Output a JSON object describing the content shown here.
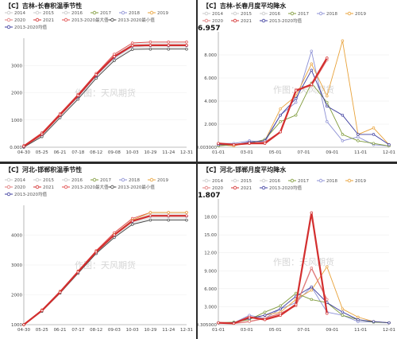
{
  "colors": {
    "y2014": "#c8c8c8",
    "y2015": "#c8c8c8",
    "y2016": "#c8c8c8",
    "y2017": "#7f9a3a",
    "y2018": "#8b8fd4",
    "y2019": "#e8a23a",
    "y2020": "#e07a7a",
    "y2021": "#d32f2f",
    "max": "#e04a4a",
    "min": "#444444",
    "avg": "#3c3c9e",
    "band": "#dcdcdc"
  },
  "chart_data": [
    {
      "type": "line",
      "title": "【C】吉林-长春积温季节性",
      "legend": [
        "2014",
        "2015",
        "2016",
        "2017",
        "2018",
        "2019",
        "2020",
        "2021",
        "2013-2020最大值",
        "2013-2020最小值",
        "2013-2020均值"
      ],
      "x_ticks": [
        "04-30",
        "05-25",
        "06-21",
        "07-18",
        "08-12",
        "09-08",
        "10-03",
        "10-29",
        "11-24",
        "12-31"
      ],
      "y_ticks": [
        "0.000",
        "1000",
        "2000",
        "3000"
      ],
      "ylim": [
        0,
        3400
      ],
      "watermark": "作图：天风期货",
      "series": [
        {
          "name": "2013-2020最大值",
          "key": "max",
          "values": [
            50,
            450,
            1050,
            1650,
            2300,
            2900,
            3250,
            3280,
            3280,
            3280
          ]
        },
        {
          "name": "2013-2020最小值",
          "key": "min",
          "values": [
            0,
            330,
            920,
            1500,
            2150,
            2700,
            3050,
            3060,
            3060,
            3060
          ]
        },
        {
          "name": "2013-2020均值",
          "key": "avg",
          "values": [
            20,
            390,
            990,
            1580,
            2230,
            2800,
            3150,
            3170,
            3170,
            3170
          ]
        },
        {
          "name": "2020",
          "key": "y2020",
          "values": [
            25,
            400,
            1000,
            1600,
            2250,
            2820,
            3160,
            3180,
            3180,
            3180
          ]
        },
        {
          "name": "2021",
          "key": "y2021",
          "values": [
            30,
            410,
            1010,
            1610,
            2260,
            2830,
            3170,
            3180,
            3180,
            3180
          ]
        }
      ]
    },
    {
      "type": "line",
      "title": "【C】吉林-长春月度平均降水",
      "current_value": "6.957",
      "legend": [
        "2014",
        "2015",
        "2016",
        "2017",
        "2018",
        "2019",
        "2020",
        "2021",
        "2013-2020均值"
      ],
      "x_ticks": [
        "01-01",
        "03-01",
        "05-01",
        "07-01",
        "09-01",
        "11-01",
        "12-01"
      ],
      "y_ticks": [
        "0.003000",
        "2.000",
        "4.000",
        "6.000",
        "8.000"
      ],
      "ylim": [
        0,
        9.0
      ],
      "watermark": "作图：天风期货",
      "series": [
        {
          "name": "2018",
          "key": "y2018",
          "values": [
            0.3,
            0.3,
            0.5,
            0.4,
            2.5,
            3.5,
            7.5,
            2.0,
            0.5,
            0.8,
            0.2,
            0.1
          ]
        },
        {
          "name": "2019",
          "key": "y2019",
          "values": [
            0.2,
            0.1,
            0.4,
            0.5,
            3.0,
            4.0,
            6.5,
            4.0,
            8.3,
            1.0,
            1.5,
            0.2
          ]
        },
        {
          "name": "2017",
          "key": "y2017",
          "values": [
            0.1,
            0.2,
            0.3,
            0.6,
            2.0,
            2.5,
            5.0,
            3.5,
            1.0,
            0.5,
            0.3,
            0.1
          ]
        },
        {
          "name": "2013-2020均值",
          "key": "avg",
          "values": [
            0.2,
            0.2,
            0.4,
            0.5,
            2.5,
            3.8,
            6.0,
            3.2,
            2.5,
            1.0,
            1.0,
            0.2
          ]
        },
        {
          "name": "2020",
          "key": "y2020",
          "values": [
            0.3,
            0.2,
            0.3,
            0.4,
            1.2,
            4.5,
            4.8,
            6.8,
            null,
            null,
            null,
            null
          ]
        },
        {
          "name": "2021",
          "key": "y2021",
          "values": [
            0.3,
            0.2,
            0.3,
            0.3,
            1.2,
            4.4,
            4.9,
            6.96,
            null,
            null,
            null,
            null
          ]
        }
      ]
    },
    {
      "type": "line",
      "title": "【C】河北-邯郸积温季节性",
      "legend": [
        "2014",
        "2015",
        "2016",
        "2017",
        "2018",
        "2019",
        "2020",
        "2021",
        "2013-2020最大值",
        "2013-2020最小值",
        "2013-2020均值"
      ],
      "x_ticks": [
        "04-30",
        "05-25",
        "06-21",
        "07-17",
        "08-12",
        "09-03",
        "10-03",
        "10-29",
        "11-24",
        "12-31"
      ],
      "y_ticks": [
        "1000",
        "2000",
        "3000",
        "4000"
      ],
      "ylim": [
        0,
        5000
      ],
      "watermark": "作图：天风期货",
      "series": [
        {
          "name": "2013-2020最大值",
          "key": "max",
          "values": [
            0,
            620,
            1400,
            2250,
            3100,
            3850,
            4450,
            4700,
            4700,
            4700
          ]
        },
        {
          "name": "2013-2020最小值",
          "key": "min",
          "values": [
            0,
            560,
            1320,
            2150,
            2980,
            3650,
            4200,
            4380,
            4380,
            4380
          ]
        },
        {
          "name": "2013-2020均值",
          "key": "avg",
          "values": [
            0,
            590,
            1360,
            2200,
            3040,
            3750,
            4320,
            4550,
            4550,
            4550
          ]
        },
        {
          "name": "2019",
          "key": "y2019",
          "values": [
            0,
            600,
            1380,
            2220,
            3060,
            3780,
            4380,
            4700,
            4700,
            4700
          ]
        },
        {
          "name": "2021",
          "key": "y2021",
          "values": [
            0,
            590,
            1360,
            2210,
            3050,
            3760,
            4340,
            4560,
            4560,
            4560
          ]
        }
      ]
    },
    {
      "type": "line",
      "title": "【C】河北-邯郸月度平均降水",
      "current_value": "1.807",
      "legend": [
        "2014",
        "2015",
        "2016",
        "2017",
        "2018",
        "2019",
        "2020",
        "2021",
        "2013-2020均值"
      ],
      "x_ticks": [
        "01-01",
        "03-01",
        "05-01",
        "07-01",
        "09-01",
        "11-01",
        "12-01"
      ],
      "y_ticks": [
        "0.305000",
        "3.000",
        "6.000",
        "9.000",
        "12.00",
        "15.00",
        "18.00"
      ],
      "ylim": [
        0,
        20
      ],
      "watermark": "作图：天风期货",
      "series": [
        {
          "name": "2018",
          "key": "y2018",
          "values": [
            0.3,
            0.3,
            1.5,
            1.0,
            2.5,
            3.5,
            6.0,
            2.0,
            1.5,
            0.5,
            0.4,
            0.3
          ]
        },
        {
          "name": "2019",
          "key": "y2019",
          "values": [
            0.3,
            0.2,
            1.0,
            1.5,
            2.0,
            4.0,
            5.5,
            9.2,
            2.5,
            1.2,
            0.5,
            0.3
          ]
        },
        {
          "name": "2017",
          "key": "y2017",
          "values": [
            0.3,
            0.4,
            0.8,
            2.0,
            3.0,
            5.0,
            4.0,
            3.5,
            1.5,
            0.8,
            0.4,
            0.3
          ]
        },
        {
          "name": "2013-2020均值",
          "key": "avg",
          "values": [
            0.3,
            0.3,
            1.0,
            1.5,
            2.5,
            4.5,
            6.0,
            3.5,
            2.0,
            0.8,
            0.5,
            0.3
          ]
        },
        {
          "name": "2020",
          "key": "y2020",
          "values": [
            0.3,
            0.2,
            0.5,
            1.0,
            1.8,
            3.0,
            9.0,
            4.0,
            null,
            null,
            null,
            null
          ]
        },
        {
          "name": "2021",
          "key": "y2021",
          "values": [
            0.3,
            0.2,
            1.2,
            0.8,
            1.5,
            3.2,
            17.8,
            1.8,
            null,
            null,
            null,
            null
          ]
        }
      ]
    }
  ]
}
